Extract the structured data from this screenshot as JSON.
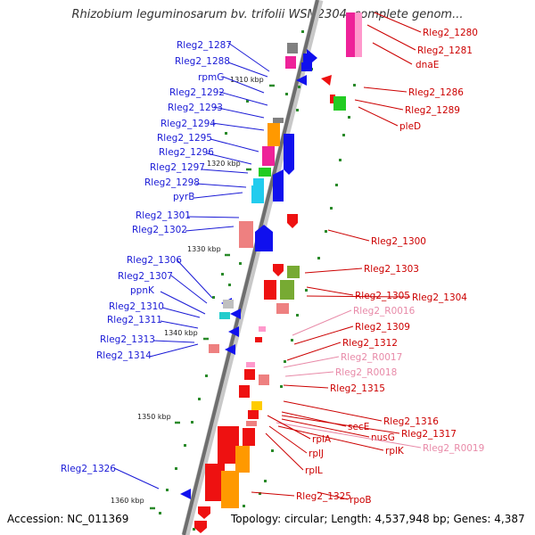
{
  "title": "Rhizobium leguminosarum bv. trifolii WSM2304, complete genom...",
  "footer": {
    "accession": "Accession: NC_011369",
    "summary": "Topology: circular; Length: 4,537,948 bp; Genes: 4,387"
  },
  "ticks": [
    "1310 kbp",
    "1320 kbp",
    "1330 kbp",
    "1340 kbp",
    "1350 kbp",
    "1360 kbp"
  ],
  "labels_left": [
    "Rleg2_1287",
    "Rleg2_1288",
    "rpmG",
    "Rleg2_1292",
    "Rleg2_1293",
    "Rleg2_1294",
    "Rleg2_1295",
    "Rleg2_1296",
    "Rleg2_1297",
    "Rleg2_1298",
    "pyrB",
    "Rleg2_1301",
    "Rleg2_1302",
    "Rleg2_1306",
    "Rleg2_1307",
    "ppnK",
    "Rleg2_1310",
    "Rleg2_1311",
    "Rleg2_1313",
    "Rleg2_1314",
    "Rleg2_1326"
  ],
  "labels_right": [
    "Rleg2_1280",
    "Rleg2_1281",
    "dnaE",
    "Rleg2_1286",
    "Rleg2_1289",
    "pleD",
    "Rleg2_1300",
    "Rleg2_1303",
    "Rleg2_1305",
    "Rleg2_1304",
    "Rleg2_R0016",
    "Rleg2_1309",
    "Rleg2_1312",
    "Rleg2_R0017",
    "Rleg2_R0018",
    "Rleg2_1315",
    "Rleg2_1316",
    "secE",
    "Rleg2_1317",
    "nusG",
    "Rleg2_R0019",
    "rplA",
    "rplK",
    "rplJ",
    "rplL",
    "Rleg2_1325",
    "rpoB"
  ],
  "colors": {
    "left_label": "#1a1ad6",
    "right_label": "#cc0000",
    "rna_label": "#e88aa8",
    "backbone": "#777777",
    "tick": "#2a8a2a"
  }
}
